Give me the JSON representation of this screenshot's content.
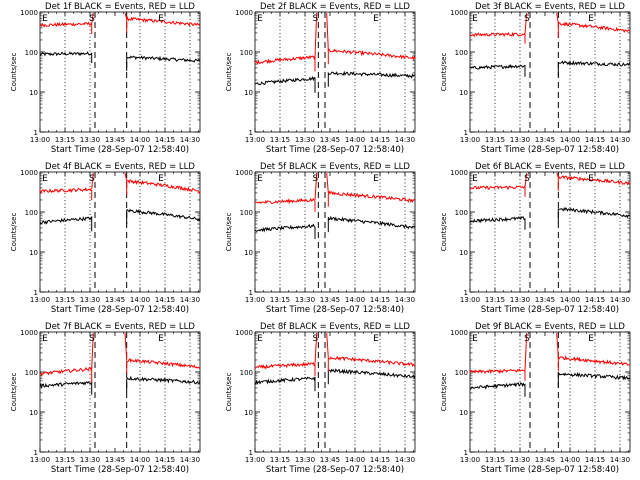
{
  "figure": {
    "time_axis_label": "Start Time (28-Sep-07 12:58:40)",
    "ylabel": "Counts/sec",
    "x_ticks": [
      "13:00",
      "13:15",
      "13:30",
      "13:45",
      "14:00",
      "14:15",
      "14:30"
    ],
    "y_ticks": [
      "1",
      "10",
      "100",
      "1000"
    ],
    "marker_labels": {
      "start": "S",
      "end": "E"
    },
    "colors": {
      "events": "#000000",
      "lld": "#ff0000",
      "dashed": "#000000",
      "dotted": "#000000"
    }
  },
  "chart_data": [
    {
      "type": "line",
      "title": "Det 1f BLACK = Events, RED = LLD",
      "xlabel": "Start Time (28-Sep-07 12:58:40)",
      "ylabel": "Counts/sec",
      "ylim": [
        1,
        1000
      ],
      "y_scale": "log",
      "x_range": [
        "13:00",
        "14:36"
      ],
      "start_marker": "13:33",
      "end_marker": "13:52",
      "dotted_lines": [
        "13:15",
        "13:30",
        "14:00",
        "14:15",
        "14:30"
      ],
      "e_label_at": "14:15",
      "series": [
        {
          "name": "Events",
          "color": "#000000",
          "x": [
            "13:00",
            "13:31",
            "13:52",
            "14:36"
          ],
          "pre": [
            88,
            92
          ],
          "post": [
            75,
            60
          ]
        },
        {
          "name": "LLD",
          "color": "#ff0000",
          "x": [
            "13:00",
            "13:31",
            "13:52",
            "14:36"
          ],
          "pre": [
            470,
            510
          ],
          "post": [
            680,
            470
          ]
        }
      ]
    },
    {
      "type": "line",
      "title": "Det 2f BLACK = Events, RED = LLD",
      "xlabel": "Start Time (28-Sep-07 12:58:40)",
      "ylabel": "Counts/sec",
      "ylim": [
        1,
        1000
      ],
      "y_scale": "log",
      "x_range": [
        "13:00",
        "14:36"
      ],
      "start_marker": "13:38",
      "end_marker": "13:42",
      "dotted_lines": [
        "13:15",
        "13:30",
        "14:00",
        "14:15",
        "14:30"
      ],
      "e_label_at": "14:15",
      "series": [
        {
          "name": "Events",
          "color": "#000000",
          "x": [
            "13:00",
            "13:36",
            "13:44",
            "14:36"
          ],
          "pre": [
            16,
            22
          ],
          "post": [
            30,
            25
          ]
        },
        {
          "name": "LLD",
          "color": "#ff0000",
          "x": [
            "13:00",
            "13:36",
            "13:44",
            "14:36"
          ],
          "pre": [
            55,
            75
          ],
          "post": [
            110,
            70
          ]
        }
      ]
    },
    {
      "type": "line",
      "title": "Det 3f BLACK = Events, RED = LLD",
      "xlabel": "Start Time (28-Sep-07 12:58:40)",
      "ylabel": "Counts/sec",
      "ylim": [
        1,
        1000
      ],
      "y_scale": "log",
      "x_range": [
        "13:00",
        "14:36"
      ],
      "start_marker": "13:36",
      "end_marker": "13:53",
      "dotted_lines": [
        "13:15",
        "13:30",
        "14:00",
        "14:15",
        "14:30"
      ],
      "e_label_at": "14:15",
      "series": [
        {
          "name": "Events",
          "color": "#000000",
          "x": [
            "13:00",
            "13:33",
            "13:53",
            "14:36"
          ],
          "pre": [
            40,
            45
          ],
          "post": [
            55,
            48
          ]
        },
        {
          "name": "LLD",
          "color": "#ff0000",
          "x": [
            "13:00",
            "13:33",
            "13:53",
            "14:36"
          ],
          "pre": [
            270,
            280
          ],
          "post": [
            520,
            330
          ]
        }
      ]
    },
    {
      "type": "line",
      "title": "Det 4f BLACK = Events, RED = LLD",
      "xlabel": "Start Time (28-Sep-07 12:58:40)",
      "ylabel": "Counts/sec",
      "ylim": [
        1,
        1000
      ],
      "y_scale": "log",
      "x_range": [
        "13:00",
        "14:36"
      ],
      "start_marker": "13:33",
      "end_marker": "13:52",
      "dotted_lines": [
        "13:15",
        "13:30",
        "14:00",
        "14:15",
        "14:30"
      ],
      "e_label_at": "14:15",
      "series": [
        {
          "name": "Events",
          "color": "#000000",
          "x": [
            "13:00",
            "13:31",
            "13:52",
            "14:36"
          ],
          "pre": [
            55,
            70
          ],
          "post": [
            110,
            65
          ]
        },
        {
          "name": "LLD",
          "color": "#ff0000",
          "x": [
            "13:00",
            "13:31",
            "13:52",
            "14:36"
          ],
          "pre": [
            330,
            370
          ],
          "post": [
            600,
            330
          ]
        }
      ]
    },
    {
      "type": "line",
      "title": "Det 5f BLACK = Events, RED = LLD",
      "xlabel": "Start Time (28-Sep-07 12:58:40)",
      "ylabel": "Counts/sec",
      "ylim": [
        1,
        1000
      ],
      "y_scale": "log",
      "x_range": [
        "13:00",
        "14:36"
      ],
      "start_marker": "13:38",
      "end_marker": "13:42",
      "dotted_lines": [
        "13:15",
        "13:30",
        "14:00",
        "14:15",
        "14:30"
      ],
      "e_label_at": "14:15",
      "series": [
        {
          "name": "Events",
          "color": "#000000",
          "x": [
            "13:00",
            "13:36",
            "13:44",
            "14:36"
          ],
          "pre": [
            35,
            45
          ],
          "post": [
            70,
            40
          ]
        },
        {
          "name": "LLD",
          "color": "#ff0000",
          "x": [
            "13:00",
            "13:36",
            "13:44",
            "14:36"
          ],
          "pre": [
            170,
            200
          ],
          "post": [
            300,
            190
          ]
        }
      ]
    },
    {
      "type": "line",
      "title": "Det 6f BLACK = Events, RED = LLD",
      "xlabel": "Start Time (28-Sep-07 12:58:40)",
      "ylabel": "Counts/sec",
      "ylim": [
        1,
        1000
      ],
      "y_scale": "log",
      "x_range": [
        "13:00",
        "14:36"
      ],
      "start_marker": "13:36",
      "end_marker": "13:53",
      "dotted_lines": [
        "13:15",
        "13:30",
        "14:00",
        "14:15",
        "14:30"
      ],
      "e_label_at": "14:15",
      "series": [
        {
          "name": "Events",
          "color": "#000000",
          "x": [
            "13:00",
            "13:33",
            "13:53",
            "14:36"
          ],
          "pre": [
            60,
            70
          ],
          "post": [
            120,
            80
          ]
        },
        {
          "name": "LLD",
          "color": "#ff0000",
          "x": [
            "13:00",
            "13:33",
            "13:53",
            "14:36"
          ],
          "pre": [
            400,
            420
          ],
          "post": [
            750,
            520
          ]
        }
      ]
    },
    {
      "type": "line",
      "title": "Det 7f BLACK = Events, RED = LLD",
      "xlabel": "Start Time (28-Sep-07 12:58:40)",
      "ylabel": "Counts/sec",
      "ylim": [
        1,
        1000
      ],
      "y_scale": "log",
      "x_range": [
        "13:00",
        "14:36"
      ],
      "start_marker": "13:33",
      "end_marker": "13:52",
      "dotted_lines": [
        "13:15",
        "13:30",
        "14:00",
        "14:15",
        "14:30"
      ],
      "e_label_at": "14:15",
      "series": [
        {
          "name": "Events",
          "color": "#000000",
          "x": [
            "13:00",
            "13:31",
            "13:52",
            "14:36"
          ],
          "pre": [
            45,
            55
          ],
          "post": [
            70,
            55
          ]
        },
        {
          "name": "LLD",
          "color": "#ff0000",
          "x": [
            "13:00",
            "13:31",
            "13:52",
            "14:36"
          ],
          "pre": [
            90,
            120
          ],
          "post": [
            200,
            130
          ]
        }
      ]
    },
    {
      "type": "line",
      "title": "Det 8f BLACK = Events, RED = LLD",
      "xlabel": "Start Time (28-Sep-07 12:58:40)",
      "ylabel": "Counts/sec",
      "ylim": [
        1,
        1000
      ],
      "y_scale": "log",
      "x_range": [
        "13:00",
        "14:36"
      ],
      "start_marker": "13:38",
      "end_marker": "13:42",
      "dotted_lines": [
        "13:15",
        "13:30",
        "14:00",
        "14:15",
        "14:30"
      ],
      "e_label_at": "14:15",
      "series": [
        {
          "name": "Events",
          "color": "#000000",
          "x": [
            "13:00",
            "13:36",
            "13:44",
            "14:36"
          ],
          "pre": [
            55,
            70
          ],
          "post": [
            110,
            75
          ]
        },
        {
          "name": "LLD",
          "color": "#ff0000",
          "x": [
            "13:00",
            "13:36",
            "13:44",
            "14:36"
          ],
          "pre": [
            130,
            160
          ],
          "post": [
            230,
            150
          ]
        }
      ]
    },
    {
      "type": "line",
      "title": "Det 9f BLACK = Events, RED = LLD",
      "xlabel": "Start Time (28-Sep-07 12:58:40)",
      "ylabel": "Counts/sec",
      "ylim": [
        1,
        1000
      ],
      "y_scale": "log",
      "x_range": [
        "13:00",
        "14:36"
      ],
      "start_marker": "13:36",
      "end_marker": "13:53",
      "dotted_lines": [
        "13:15",
        "13:30",
        "14:00",
        "14:15",
        "14:30"
      ],
      "e_label_at": "14:15",
      "series": [
        {
          "name": "Events",
          "color": "#000000",
          "x": [
            "13:00",
            "13:33",
            "13:53",
            "14:36"
          ],
          "pre": [
            40,
            50
          ],
          "post": [
            90,
            70
          ]
        },
        {
          "name": "LLD",
          "color": "#ff0000",
          "x": [
            "13:00",
            "13:33",
            "13:53",
            "14:36"
          ],
          "pre": [
            100,
            110
          ],
          "post": [
            230,
            150
          ]
        }
      ]
    }
  ]
}
